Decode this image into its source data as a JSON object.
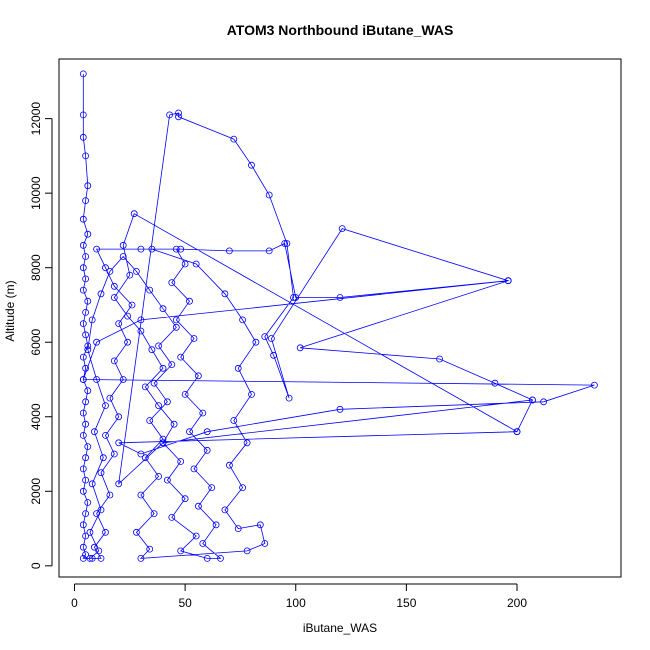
{
  "chart_data": {
    "type": "line",
    "title": "ATOM3 Northbound iButane_WAS",
    "xlabel": "iButane_WAS",
    "ylabel": "Altitude (m)",
    "xlim": [
      -7,
      247
    ],
    "ylim": [
      -300,
      13600
    ],
    "xticks": [
      0,
      50,
      100,
      150,
      200
    ],
    "yticks": [
      0,
      2000,
      4000,
      6000,
      8000,
      10000,
      12000
    ],
    "grid": false,
    "legend": "none",
    "colors": {
      "series": "#0000ff",
      "axis": "#000000",
      "background": "#ffffff"
    },
    "series": [
      {
        "marker": "open-circle",
        "points": [
          [
            4,
            13200
          ],
          [
            4,
            12100
          ],
          [
            4,
            11500
          ],
          [
            5,
            11000
          ],
          [
            6,
            10200
          ],
          [
            5,
            9800
          ],
          [
            4,
            9300
          ],
          [
            6,
            8900
          ],
          [
            4,
            8600
          ],
          [
            5,
            8300
          ],
          [
            4,
            8000
          ],
          [
            5,
            7700
          ],
          [
            4,
            7400
          ],
          [
            6,
            7100
          ],
          [
            5,
            6800
          ],
          [
            4,
            6500
          ],
          [
            5,
            6200
          ],
          [
            6,
            5900
          ],
          [
            4,
            5600
          ],
          [
            5,
            5300
          ],
          [
            4,
            5000
          ],
          [
            6,
            4700
          ],
          [
            5,
            4400
          ],
          [
            4,
            4100
          ],
          [
            5,
            3800
          ],
          [
            4,
            3500
          ],
          [
            6,
            3200
          ],
          [
            5,
            2900
          ],
          [
            4,
            2600
          ],
          [
            5,
            2300
          ],
          [
            4,
            2000
          ],
          [
            6,
            1700
          ],
          [
            5,
            1400
          ],
          [
            4,
            1100
          ],
          [
            5,
            800
          ],
          [
            4,
            500
          ],
          [
            5,
            300
          ],
          [
            4,
            200
          ],
          [
            8,
            200
          ],
          [
            12,
            200
          ],
          [
            9,
            500
          ],
          [
            14,
            900
          ],
          [
            10,
            1400
          ],
          [
            16,
            1900
          ],
          [
            12,
            2500
          ],
          [
            18,
            3000
          ],
          [
            14,
            3500
          ],
          [
            20,
            4000
          ],
          [
            16,
            4500
          ],
          [
            22,
            5000
          ],
          [
            18,
            5500
          ],
          [
            24,
            6000
          ],
          [
            20,
            6500
          ],
          [
            26,
            7000
          ],
          [
            18,
            7500
          ],
          [
            14,
            8000
          ],
          [
            10,
            8500
          ],
          [
            30,
            8500
          ],
          [
            48,
            8500
          ],
          [
            70,
            8450
          ],
          [
            88,
            8450
          ],
          [
            95,
            8650
          ],
          [
            100,
            7200
          ],
          [
            120,
            7200
          ],
          [
            196,
            7650
          ],
          [
            30,
            6600
          ],
          [
            10,
            6000
          ],
          [
            4,
            5000
          ],
          [
            235,
            4850
          ],
          [
            212,
            4400
          ],
          [
            120,
            4200
          ],
          [
            60,
            3600
          ],
          [
            30,
            3000
          ],
          [
            20,
            3300
          ],
          [
            200,
            3600
          ],
          [
            207,
            4450
          ],
          [
            40,
            3300
          ],
          [
            20,
            2200
          ],
          [
            43,
            12100
          ],
          [
            47,
            12150
          ],
          [
            47,
            12050
          ],
          [
            72,
            11450
          ],
          [
            80,
            10750
          ],
          [
            88,
            9950
          ],
          [
            96,
            8650
          ],
          [
            99,
            7200
          ],
          [
            86,
            6150
          ],
          [
            90,
            5650
          ],
          [
            97,
            4500
          ],
          [
            89,
            6100
          ],
          [
            121,
            9050
          ],
          [
            196,
            7650
          ],
          [
            102,
            5850
          ],
          [
            165,
            5550
          ],
          [
            190,
            4900
          ],
          [
            207,
            4450
          ],
          [
            200,
            3600
          ],
          [
            27,
            9450
          ],
          [
            22,
            8600
          ],
          [
            25,
            7800
          ],
          [
            18,
            7200
          ],
          [
            24,
            6700
          ],
          [
            30,
            6300
          ],
          [
            35,
            5800
          ],
          [
            40,
            5300
          ],
          [
            32,
            4800
          ],
          [
            38,
            4300
          ],
          [
            45,
            3800
          ],
          [
            40,
            3300
          ],
          [
            48,
            2800
          ],
          [
            42,
            2300
          ],
          [
            50,
            1800
          ],
          [
            44,
            1300
          ],
          [
            55,
            800
          ],
          [
            48,
            400
          ],
          [
            60,
            200
          ],
          [
            66,
            200
          ],
          [
            58,
            600
          ],
          [
            64,
            1100
          ],
          [
            56,
            1600
          ],
          [
            62,
            2100
          ],
          [
            54,
            2600
          ],
          [
            60,
            3100
          ],
          [
            52,
            3600
          ],
          [
            58,
            4100
          ],
          [
            50,
            4600
          ],
          [
            56,
            5100
          ],
          [
            48,
            5600
          ],
          [
            54,
            6100
          ],
          [
            46,
            6600
          ],
          [
            52,
            7100
          ],
          [
            44,
            7600
          ],
          [
            50,
            8100
          ],
          [
            46,
            8500
          ],
          [
            35,
            8500
          ],
          [
            55,
            8100
          ],
          [
            68,
            7300
          ],
          [
            76,
            6600
          ],
          [
            82,
            6000
          ],
          [
            74,
            5300
          ],
          [
            80,
            4600
          ],
          [
            72,
            3900
          ],
          [
            78,
            3300
          ],
          [
            70,
            2700
          ],
          [
            76,
            2100
          ],
          [
            68,
            1500
          ],
          [
            74,
            1000
          ],
          [
            84,
            1100
          ],
          [
            86,
            600
          ],
          [
            78,
            400
          ],
          [
            30,
            200
          ],
          [
            34,
            450
          ],
          [
            28,
            900
          ],
          [
            36,
            1400
          ],
          [
            30,
            1900
          ],
          [
            38,
            2400
          ],
          [
            32,
            2900
          ],
          [
            40,
            3400
          ],
          [
            34,
            3900
          ],
          [
            42,
            4400
          ],
          [
            36,
            4900
          ],
          [
            44,
            5400
          ],
          [
            38,
            5900
          ],
          [
            46,
            6400
          ],
          [
            40,
            6900
          ],
          [
            34,
            7400
          ],
          [
            28,
            7900
          ],
          [
            22,
            8300
          ],
          [
            16,
            7900
          ],
          [
            12,
            7300
          ],
          [
            8,
            6600
          ],
          [
            6,
            5800
          ],
          [
            10,
            5000
          ],
          [
            14,
            4300
          ],
          [
            9,
            3600
          ],
          [
            13,
            2900
          ],
          [
            8,
            2200
          ],
          [
            12,
            1500
          ],
          [
            7,
            900
          ],
          [
            11,
            400
          ],
          [
            7,
            200
          ]
        ]
      }
    ]
  }
}
